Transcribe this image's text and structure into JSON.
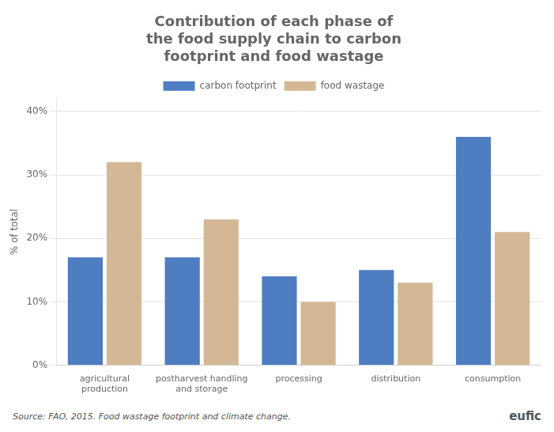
{
  "chart_data": {
    "type": "bar",
    "title": "Contribution of each phase of\nthe food supply chain to carbon\nfootprint and food wastage",
    "categories": [
      "agricultural\nproduction",
      "postharvest handling\nand storage",
      "processing",
      "distribution",
      "consumption"
    ],
    "series": [
      {
        "name": "carbon footprint",
        "color": "#4e7dc2",
        "values": [
          17,
          17,
          14,
          15,
          36
        ]
      },
      {
        "name": "food wastage",
        "color": "#d4b896",
        "values": [
          32,
          23,
          10,
          13,
          21
        ]
      }
    ],
    "ylabel": "% of total",
    "ylim": [
      0,
      42
    ],
    "yticks": [
      {
        "value": 0,
        "label": "0%"
      },
      {
        "value": 10,
        "label": "10%"
      },
      {
        "value": 20,
        "label": "20%"
      },
      {
        "value": 30,
        "label": "30%"
      },
      {
        "value": 40,
        "label": "40%"
      }
    ],
    "grid": true,
    "legend": "top",
    "annotations": [
      "Source: FAO, 2015. Food wastage footprint and climate change.",
      "eufic"
    ]
  }
}
